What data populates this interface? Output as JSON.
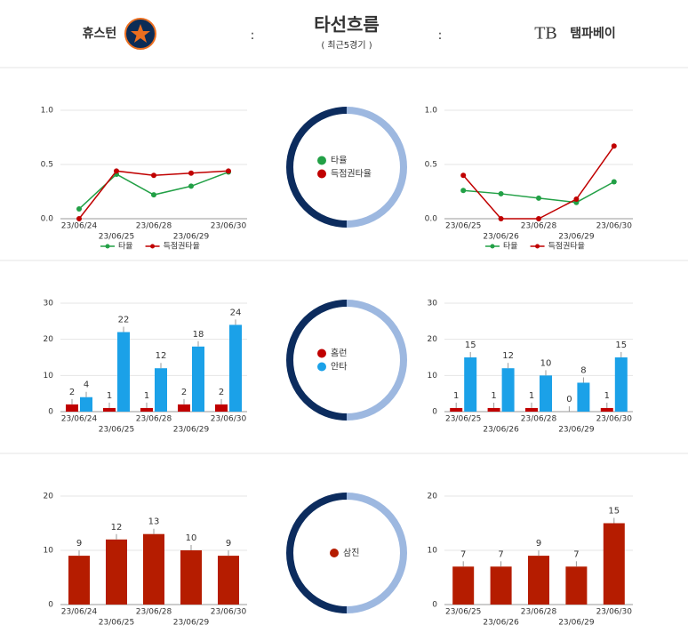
{
  "header": {
    "home": "휴스턴",
    "title": "타선흐름",
    "subtitle": "( 최근5경기 )",
    "away": "탬파베이",
    "separator": ":",
    "away_logo_text": "TB"
  },
  "chart_data": [
    {
      "type": "line",
      "categories": [
        "23/06/24",
        "23/06/25",
        "23/06/28",
        "23/06/29",
        "23/06/30"
      ],
      "series": [
        {
          "name": "타율",
          "color": "#22a046",
          "values": [
            0.09,
            0.41,
            0.22,
            0.3,
            0.43
          ]
        },
        {
          "name": "득점권타율",
          "color": "#c00000",
          "values": [
            0.0,
            0.44,
            0.4,
            0.42,
            0.44
          ]
        }
      ],
      "ylim": [
        0,
        1
      ],
      "yticks": [
        {
          "value": 0,
          "label": "0.0"
        },
        {
          "value": 0.5,
          "label": "0.5"
        },
        {
          "value": 1,
          "label": "1.0"
        }
      ],
      "grid": true,
      "legend": "bottom"
    },
    {
      "type": "line",
      "categories": [
        "23/06/25",
        "23/06/26",
        "23/06/28",
        "23/06/29",
        "23/06/30"
      ],
      "series": [
        {
          "name": "타율",
          "color": "#22a046",
          "values": [
            0.26,
            0.23,
            0.19,
            0.15,
            0.34
          ]
        },
        {
          "name": "득점권타율",
          "color": "#c00000",
          "values": [
            0.4,
            0.0,
            0.0,
            0.18,
            0.67
          ]
        }
      ],
      "ylim": [
        0,
        1
      ],
      "yticks": [
        {
          "value": 0,
          "label": "0.0"
        },
        {
          "value": 0.5,
          "label": "0.5"
        },
        {
          "value": 1,
          "label": "1.0"
        }
      ],
      "grid": true,
      "legend": "bottom"
    },
    {
      "type": "bar",
      "categories": [
        "23/06/24",
        "23/06/25",
        "23/06/28",
        "23/06/29",
        "23/06/30"
      ],
      "series": [
        {
          "name": "홈런",
          "color": "#c00000",
          "values": [
            2,
            1,
            1,
            2,
            2
          ]
        },
        {
          "name": "안타",
          "color": "#1ba1e8",
          "values": [
            4,
            22,
            12,
            18,
            24
          ]
        }
      ],
      "ylim": [
        0,
        30
      ],
      "yticks": [
        0,
        10,
        20,
        30
      ],
      "grid": true,
      "data_labels": true,
      "legend": "center"
    },
    {
      "type": "bar",
      "categories": [
        "23/06/25",
        "23/06/26",
        "23/06/28",
        "23/06/29",
        "23/06/30"
      ],
      "series": [
        {
          "name": "홈런",
          "color": "#c00000",
          "values": [
            1,
            1,
            1,
            0,
            1
          ]
        },
        {
          "name": "안타",
          "color": "#1ba1e8",
          "values": [
            15,
            12,
            10,
            8,
            15
          ]
        }
      ],
      "ylim": [
        0,
        30
      ],
      "yticks": [
        0,
        10,
        20,
        30
      ],
      "grid": true,
      "data_labels": true,
      "legend": "center"
    },
    {
      "type": "bar",
      "categories": [
        "23/06/24",
        "23/06/25",
        "23/06/28",
        "23/06/29",
        "23/06/30"
      ],
      "series": [
        {
          "name": "삼진",
          "color": "#b51c00",
          "values": [
            9,
            12,
            13,
            10,
            9
          ]
        }
      ],
      "ylim": [
        0,
        20
      ],
      "yticks": [
        0,
        10,
        20
      ],
      "grid": true,
      "data_labels": true,
      "legend": "center"
    },
    {
      "type": "bar",
      "categories": [
        "23/06/25",
        "23/06/26",
        "23/06/28",
        "23/06/29",
        "23/06/30"
      ],
      "series": [
        {
          "name": "삼진",
          "color": "#b51c00",
          "values": [
            7,
            7,
            9,
            7,
            15
          ]
        }
      ],
      "ylim": [
        0,
        20
      ],
      "yticks": [
        0,
        10,
        20
      ],
      "grid": true,
      "data_labels": true,
      "legend": "center"
    }
  ]
}
